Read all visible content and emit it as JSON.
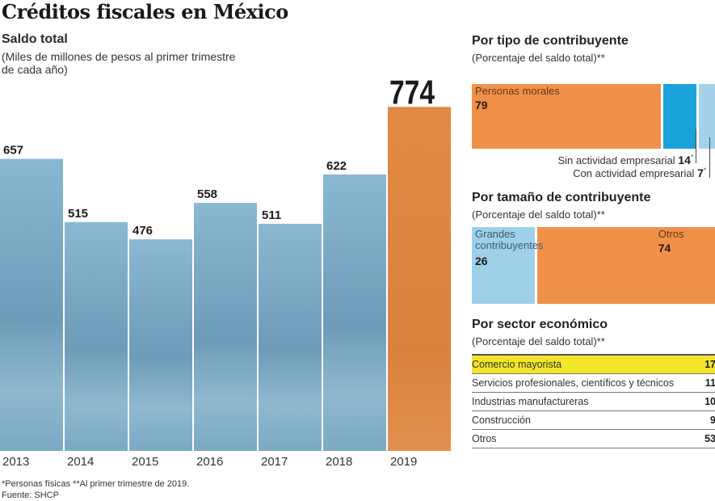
{
  "title": "Créditos fiscales en México",
  "colors": {
    "bar_blue": "#7fb0cc",
    "bar_highlight": "#e08a45",
    "orange": "#f0914a",
    "blue_dark": "#1aa3d9",
    "blue_light": "#9fd0ea",
    "highlight_yellow": "#f2e52a"
  },
  "chart_data": [
    {
      "type": "bar",
      "title": "Saldo total",
      "subtitle": "(Miles de millones de pesos al primer trimestre de cada año)",
      "xlabel": "",
      "ylabel": "",
      "categories": [
        "2013",
        "2014",
        "2015",
        "2016",
        "2017",
        "2018",
        "2019"
      ],
      "values": [
        657,
        515,
        476,
        558,
        511,
        622,
        774
      ],
      "highlight": "2019",
      "ylim": [
        0,
        800
      ],
      "grid": false
    },
    {
      "type": "bar",
      "stacked": true,
      "orientation": "horizontal",
      "title": "Por tipo de contribuyente",
      "subtitle": "(Porcentaje del saldo total)**",
      "series": [
        {
          "name": "Personas morales",
          "value": 79,
          "label_inside": true
        },
        {
          "name": "Sin actividad empresarial",
          "value": 14,
          "marker": "*"
        },
        {
          "name": "Con actividad empresarial",
          "value": 7,
          "marker": "*"
        }
      ]
    },
    {
      "type": "bar",
      "stacked": true,
      "orientation": "horizontal",
      "title": "Por tamaño de contribuyente",
      "subtitle": "(Porcentaje del saldo total)**",
      "series": [
        {
          "name": "Grandes contribuyentes",
          "value": 26
        },
        {
          "name": "Otros",
          "value": 74
        }
      ]
    },
    {
      "type": "table",
      "title": "Por sector económico",
      "subtitle": "(Porcentaje del saldo total)**",
      "rows": [
        {
          "label": "Comercio mayorista",
          "value": 17,
          "highlight": true
        },
        {
          "label": "Servicios profesionales, científicos y técnicos",
          "value": 11
        },
        {
          "label": "Industrias manufactureras",
          "value": 10
        },
        {
          "label": "Construcción",
          "value": 9
        },
        {
          "label": "Otros",
          "value": 53
        }
      ]
    }
  ],
  "tipo": {
    "title": "Por tipo de contribuyente",
    "note": "(Porcentaje del saldo total)**",
    "morales_label": "Personas morales",
    "morales_value": "79",
    "sin_label": "Sin actividad empresarial",
    "sin_value": "14",
    "con_label": "Con actividad empresarial",
    "con_value": "7",
    "asterisk": "*"
  },
  "tamano": {
    "title": "Por tamaño de contribuyente",
    "note": "(Porcentaje del saldo total)**",
    "grandes_label": "Grandes contribuyentes",
    "grandes_value": "26",
    "otros_label": "Otros",
    "otros_value": "74"
  },
  "sector": {
    "title": "Por sector económico",
    "note": "(Porcentaje del saldo total)**",
    "rows": [
      {
        "label": "Comercio mayorista",
        "value": "17"
      },
      {
        "label": "Servicios profesionales, científicos y técnicos",
        "value": "11"
      },
      {
        "label": "Industrias manufactureras",
        "value": "10"
      },
      {
        "label": "Construcción",
        "value": "9"
      },
      {
        "label": "Otros",
        "value": "53"
      }
    ]
  },
  "footnote": {
    "line1": "*Personas físicas **Al primer trimestre de 2019.",
    "line2": "Fuente: SHCP"
  }
}
